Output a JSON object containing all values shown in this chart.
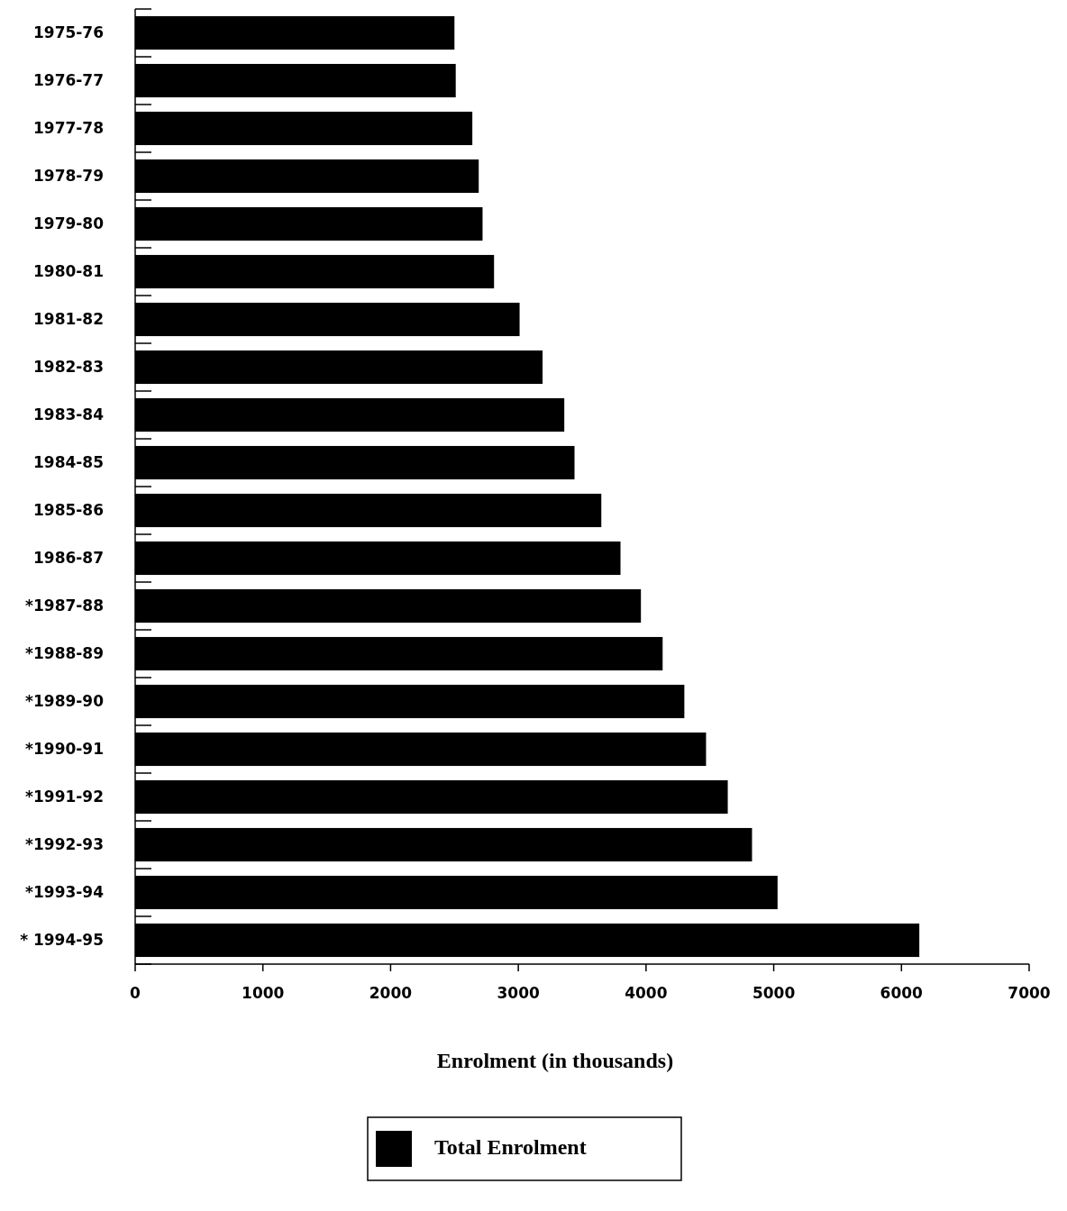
{
  "chart_data": {
    "type": "bar",
    "orientation": "horizontal",
    "xlabel": "Enrolment (in thousands)",
    "categories": [
      "1975-76",
      "1976-77",
      "1977-78",
      "1978-79",
      "1979-80",
      "1980-81",
      "1981-82",
      "1982-83",
      "1983-84",
      "1984-85",
      "1985-86",
      "1986-87",
      "*1987-88",
      "*1988-89",
      "*1989-90",
      "*1990-91",
      "*1991-92",
      "*1992-93",
      "*1993-94",
      "* 1994-95"
    ],
    "series": [
      {
        "name": "Total Enrolment",
        "color": "#000000",
        "values": [
          2500,
          2510,
          2640,
          2690,
          2720,
          2810,
          3010,
          3190,
          3360,
          3440,
          3650,
          3800,
          3960,
          4130,
          4300,
          4470,
          4640,
          4830,
          5030,
          6140
        ]
      }
    ],
    "xlim": [
      0,
      7000
    ],
    "xticks": [
      0,
      1000,
      2000,
      3000,
      4000,
      5000,
      6000,
      7000
    ],
    "grid": false,
    "legend": "bottom"
  }
}
